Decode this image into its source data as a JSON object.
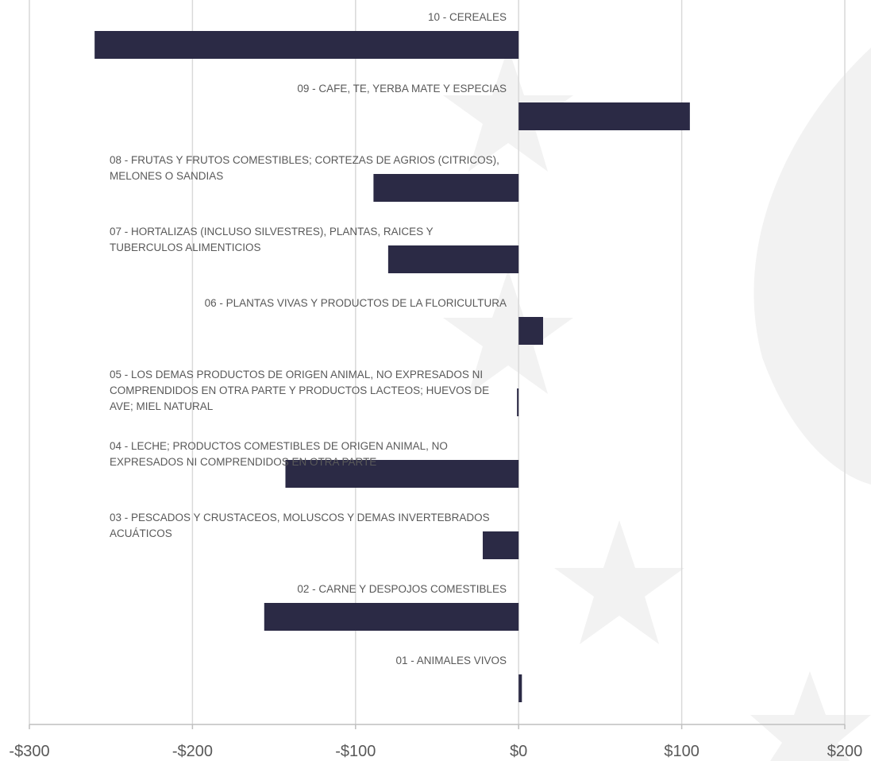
{
  "chart_data": {
    "type": "bar",
    "orientation": "horizontal",
    "categories": [
      "10 - CEREALES",
      "09 - CAFE, TE, YERBA MATE Y ESPECIAS",
      "08 - FRUTAS Y FRUTOS COMESTIBLES; CORTEZAS DE AGRIOS (CITRICOS), MELONES O SANDIAS",
      "07 - HORTALIZAS (INCLUSO SILVESTRES), PLANTAS, RAICES Y TUBERCULOS ALIMENTICIOS",
      "06 - PLANTAS VIVAS Y PRODUCTOS DE LA FLORICULTURA",
      "05 - LOS DEMAS PRODUCTOS DE ORIGEN ANIMAL, NO EXPRESADOS NI COMPRENDIDOS EN OTRA PARTE Y PRODUCTOS LACTEOS; HUEVOS DE AVE; MIEL NATURAL",
      "04 - LECHE; PRODUCTOS COMESTIBLES DE ORIGEN ANIMAL, NO EXPRESADOS NI COMPRENDIDOS EN OTRA PARTE",
      "03 - PESCADOS Y CRUSTACEOS, MOLUSCOS Y DEMAS INVERTEBRADOS ACUÁTICOS",
      "02 - CARNE Y DESPOJOS COMESTIBLES",
      "01 - ANIMALES VIVOS"
    ],
    "values": [
      -260,
      105,
      -89,
      -80,
      15,
      -1,
      -143,
      -22,
      -156,
      2
    ],
    "color": "#2b2a45",
    "xlim": [
      -300,
      200
    ],
    "xticks": [
      {
        "value": -300,
        "label": "-$300"
      },
      {
        "value": -200,
        "label": "-$200"
      },
      {
        "value": -100,
        "label": "-$100"
      },
      {
        "value": 0,
        "label": "$0"
      },
      {
        "value": 100,
        "label": "$100"
      },
      {
        "value": 200,
        "label": "$200"
      }
    ],
    "grid": true
  }
}
